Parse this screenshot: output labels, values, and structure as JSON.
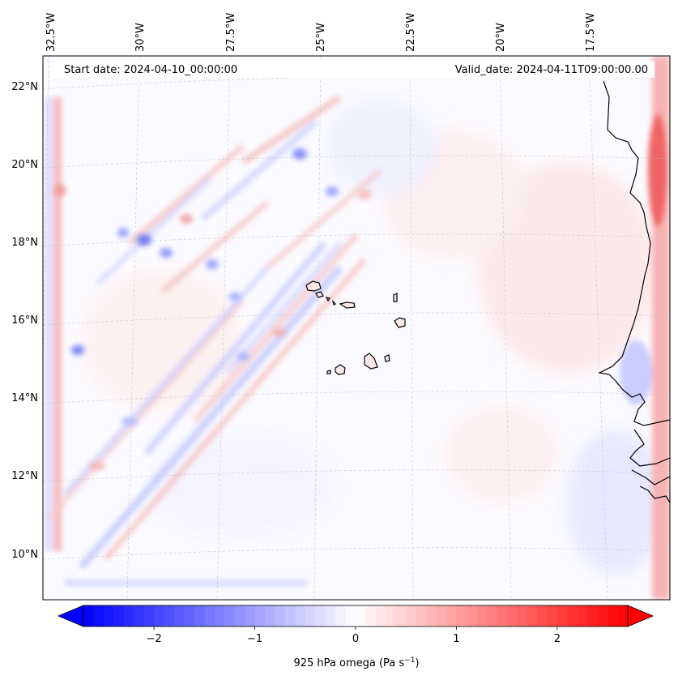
{
  "header": {
    "start_date": "Start date: 2024-04-10_00:00:00",
    "valid_date": "Valid_date: 2024-04-11T09:00:00.00"
  },
  "map": {
    "longitude_labels": [
      "32.5°W",
      "30°W",
      "27.5°W",
      "25°W",
      "22.5°W",
      "20°W",
      "17.5°W"
    ],
    "latitude_labels": [
      "22°N",
      "20°N",
      "18°N",
      "16°N",
      "14°N",
      "12°N",
      "10°N"
    ],
    "field": "925 hPa omega",
    "extent": {
      "lon_min": -33.2,
      "lon_max": -16.3,
      "lat_min": 8.9,
      "lat_max": 22.8
    }
  },
  "colorbar": {
    "label_base": "925 hPa omega (Pa s",
    "label_exp": "−1",
    "label_close": ")",
    "range": [
      -2.7,
      2.7
    ],
    "tick_values": [
      -2,
      -1,
      0,
      1,
      2
    ],
    "tick_labels": [
      "−2",
      "−1",
      "0",
      "1",
      "2"
    ],
    "colormap": "bwr",
    "colors": {
      "negative": "#0000ff",
      "zero": "#ffffff",
      "positive": "#ff0000"
    }
  }
}
